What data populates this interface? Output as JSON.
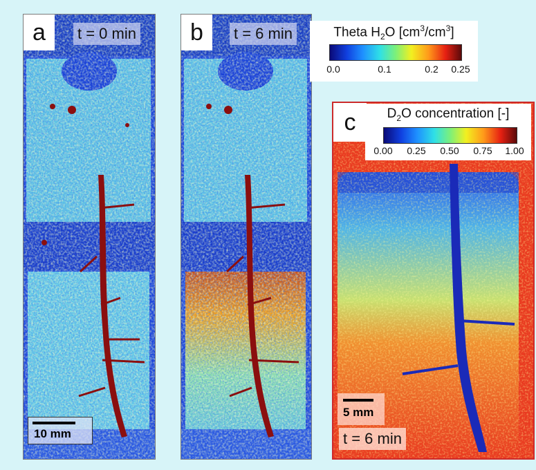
{
  "panels": {
    "a": {
      "letter": "a",
      "time": "t = 0 min",
      "scale": "10 mm"
    },
    "b": {
      "letter": "b",
      "time": "t = 6 min"
    },
    "c": {
      "letter": "c",
      "time": "t = 6 min",
      "scale": "5 mm"
    }
  },
  "colorbars": {
    "theta": {
      "title_prefix": "Theta H",
      "title_sub": "2",
      "title_mid": "O [cm",
      "title_sup1": "3",
      "title_mid2": "/cm",
      "title_sup2": "3",
      "title_end": "]",
      "ticks": [
        "0.0",
        "0.1",
        "0.2",
        "0.25"
      ]
    },
    "d2o": {
      "title_prefix": "D",
      "title_sub": "2",
      "title_rest": "O concentration  [-]",
      "ticks": [
        "0.00",
        "0.25",
        "0.50",
        "0.75",
        "1.00"
      ]
    }
  },
  "colors": {
    "background": "#d7f4f8",
    "dry_blue": "#1a3fd6",
    "wet_cyan": "#58c8e6",
    "root_red": "#8b0f0f",
    "d2o_red": "#e93b20",
    "panel_c_border": "#cc2a2a"
  }
}
